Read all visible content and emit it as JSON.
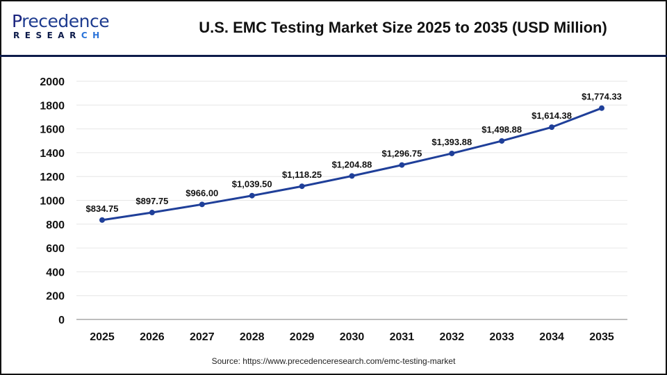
{
  "logo": {
    "text_top": "Precedence",
    "text_bottom": "RESEARCH"
  },
  "source": "Source: https://www.precedenceresearch.com/emc-testing-market",
  "colors": {
    "line": "#1f3f99",
    "header_rule": "#0d1b4a",
    "grid": "#e6e6e6",
    "axis": "#bdbdbd"
  },
  "chart_data": {
    "type": "line",
    "title": "U.S. EMC Testing Market Size 2025 to 2035 (USD Million)",
    "categories": [
      "2025",
      "2026",
      "2027",
      "2028",
      "2029",
      "2030",
      "2031",
      "2032",
      "2033",
      "2034",
      "2035"
    ],
    "values": [
      834.75,
      897.75,
      966.0,
      1039.5,
      1118.25,
      1204.88,
      1296.75,
      1393.88,
      1498.88,
      1614.38,
      1774.33
    ],
    "data_labels": [
      "$834.75",
      "$897.75",
      "$966.00",
      "$1,039.50",
      "$1,118.25",
      "$1,204.88",
      "$1,296.75",
      "$1,393.88",
      "$1,498.88",
      "$1,614.38",
      "$1,774.33"
    ],
    "ylim": [
      0,
      2000
    ],
    "yticks": [
      0,
      200,
      400,
      600,
      800,
      1000,
      1200,
      1400,
      1600,
      1800,
      2000
    ],
    "grid": true,
    "markers": true,
    "xlabel": "",
    "ylabel": ""
  }
}
